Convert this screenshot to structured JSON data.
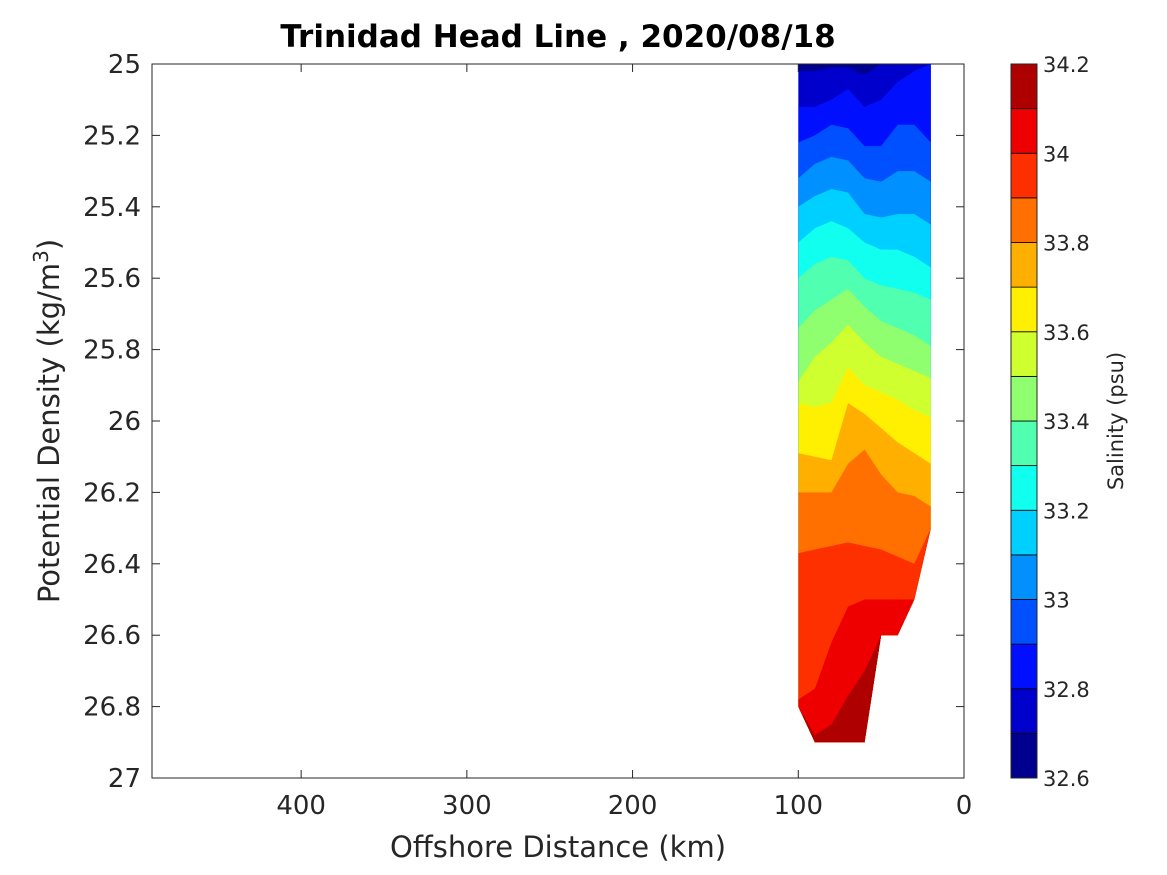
{
  "chart_data": {
    "type": "filled-contour",
    "title": "Trinidad Head Line , 2020/08/18",
    "xlabel": "Offshore Distance (km)",
    "ylabel_main": "Potential Density (kg/m",
    "ylabel_sup": "3",
    "ylabel_close": ")",
    "xlim": [
      490,
      0
    ],
    "x_reversed": true,
    "ylim": [
      25,
      27
    ],
    "y_reversed": true,
    "x_ticks": [
      400,
      300,
      200,
      100,
      0
    ],
    "x_tick_labels": [
      "400",
      "300",
      "200",
      "100",
      "0"
    ],
    "y_ticks": [
      25,
      25.2,
      25.4,
      25.6,
      25.8,
      26,
      26.2,
      26.4,
      26.6,
      26.8,
      27
    ],
    "y_tick_labels": [
      "25",
      "25.2",
      "25.4",
      "25.6",
      "25.8",
      "26",
      "26.2",
      "26.4",
      "26.6",
      "26.8",
      "27"
    ],
    "colorbar": {
      "label": "Salinity (psu)",
      "range": [
        32.6,
        34.2
      ],
      "levels": [
        32.6,
        32.7,
        32.8,
        32.9,
        33.0,
        33.1,
        33.2,
        33.3,
        33.4,
        33.5,
        33.6,
        33.7,
        33.8,
        33.9,
        34.0,
        34.1,
        34.2
      ],
      "colors": [
        "#00008f",
        "#0000cc",
        "#0010ff",
        "#0050ff",
        "#0090ff",
        "#00d0ff",
        "#10ffef",
        "#50ffaf",
        "#90ff6f",
        "#d0ff2f",
        "#ffef00",
        "#ffaf00",
        "#ff7000",
        "#ff3000",
        "#ef0000",
        "#af0000"
      ],
      "ticks": [
        32.6,
        32.8,
        33.0,
        33.2,
        33.4,
        33.6,
        33.8,
        34.0,
        34.2
      ],
      "tick_labels": [
        "32.6",
        "32.8",
        "33",
        "33.2",
        "33.4",
        "33.6",
        "33.8",
        "34",
        "34.2"
      ]
    },
    "data_extent_x": [
      100,
      20
    ],
    "stations_x": [
      100,
      90,
      80,
      70,
      60,
      50,
      40,
      30,
      20
    ],
    "bottom_density": [
      26.8,
      26.9,
      26.9,
      26.9,
      26.9,
      26.6,
      26.6,
      26.5,
      26.3
    ],
    "boundaries": {
      "x": [
        100,
        90,
        80,
        70,
        60,
        50,
        40,
        30,
        20
      ],
      "levels": [
        32.7,
        32.8,
        32.9,
        33.0,
        33.1,
        33.2,
        33.3,
        33.4,
        33.5,
        33.6,
        33.7,
        33.8,
        33.9,
        34.0,
        34.1
      ],
      "density": [
        [
          25.02,
          25.02,
          25.01,
          25.01,
          25.03,
          25.0,
          25.0,
          25.0,
          25.0
        ],
        [
          25.12,
          25.12,
          25.1,
          25.07,
          25.12,
          25.1,
          25.05,
          25.02,
          25.0
        ],
        [
          25.22,
          25.2,
          25.17,
          25.18,
          25.23,
          25.23,
          25.17,
          25.17,
          25.22
        ],
        [
          25.32,
          25.28,
          25.26,
          25.27,
          25.32,
          25.33,
          25.3,
          25.3,
          25.33
        ],
        [
          25.4,
          25.37,
          25.35,
          25.36,
          25.42,
          25.43,
          25.42,
          25.42,
          25.45
        ],
        [
          25.5,
          25.46,
          25.44,
          25.46,
          25.5,
          25.52,
          25.52,
          25.54,
          25.57
        ],
        [
          25.6,
          25.56,
          25.54,
          25.55,
          25.6,
          25.62,
          25.63,
          25.64,
          25.66
        ],
        [
          25.74,
          25.69,
          25.66,
          25.63,
          25.68,
          25.72,
          25.74,
          25.76,
          25.79
        ],
        [
          25.89,
          25.82,
          25.78,
          25.73,
          25.78,
          25.82,
          25.84,
          25.86,
          25.88
        ],
        [
          25.95,
          25.96,
          25.95,
          25.85,
          25.9,
          25.92,
          25.94,
          25.97,
          25.99
        ],
        [
          26.09,
          26.1,
          26.11,
          25.95,
          25.98,
          26.02,
          26.06,
          26.09,
          26.12
        ],
        [
          26.2,
          26.2,
          26.2,
          26.12,
          26.08,
          26.15,
          26.2,
          26.21,
          26.24
        ],
        [
          26.37,
          26.36,
          26.35,
          26.34,
          26.35,
          26.36,
          26.38,
          26.4,
          26.3
        ],
        [
          26.78,
          26.75,
          26.62,
          26.52,
          26.5,
          26.5,
          26.5,
          26.5,
          26.3
        ],
        [
          26.8,
          26.88,
          26.85,
          26.77,
          26.7,
          26.6,
          26.6,
          26.5,
          26.3
        ]
      ]
    }
  }
}
